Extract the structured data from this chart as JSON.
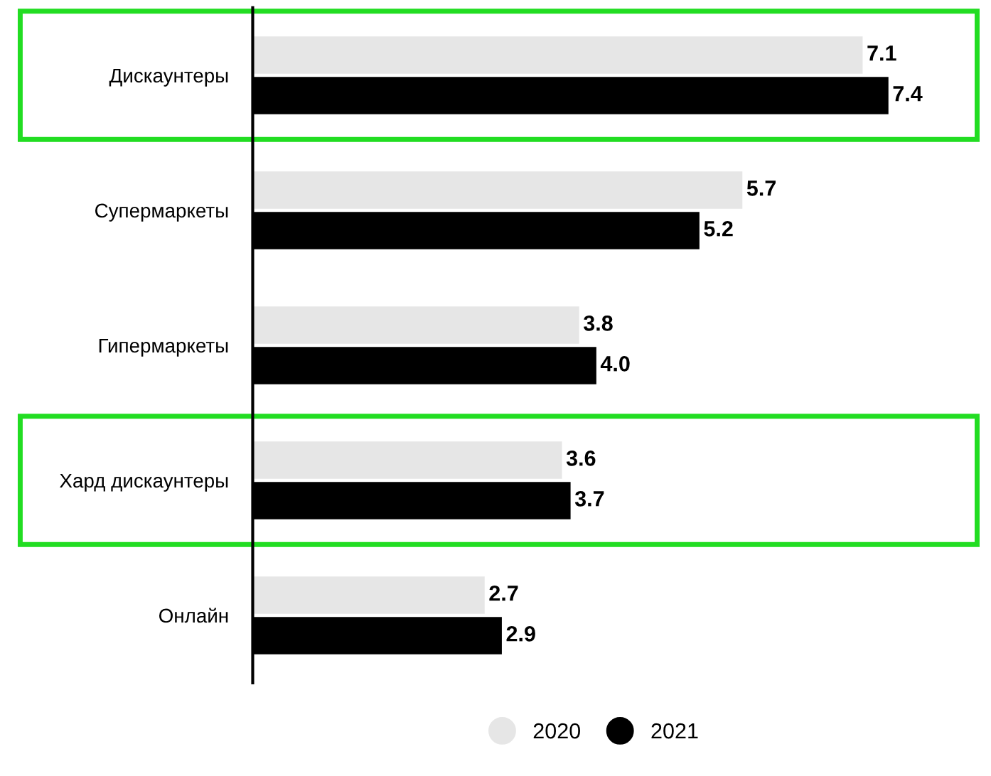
{
  "chart_data": {
    "type": "bar",
    "orientation": "horizontal",
    "categories": [
      "Дискаунтеры",
      "Супермаркеты",
      "Гипермаркеты",
      "Хард дискаунтеры",
      "Онлайн"
    ],
    "series": [
      {
        "name": "2020",
        "color": "#e6e6e6",
        "values": [
          7.1,
          5.7,
          3.8,
          3.6,
          2.7
        ],
        "value_labels": [
          "7.1",
          "5.7",
          "3.8",
          "3.6",
          "2.7"
        ]
      },
      {
        "name": "2021",
        "color": "#000000",
        "values": [
          7.4,
          5.2,
          4.0,
          3.7,
          2.9
        ],
        "value_labels": [
          "7.4",
          "5.2",
          "4.0",
          "3.7",
          "2.9"
        ]
      }
    ],
    "legend": "bottom",
    "grid": false
  }
}
